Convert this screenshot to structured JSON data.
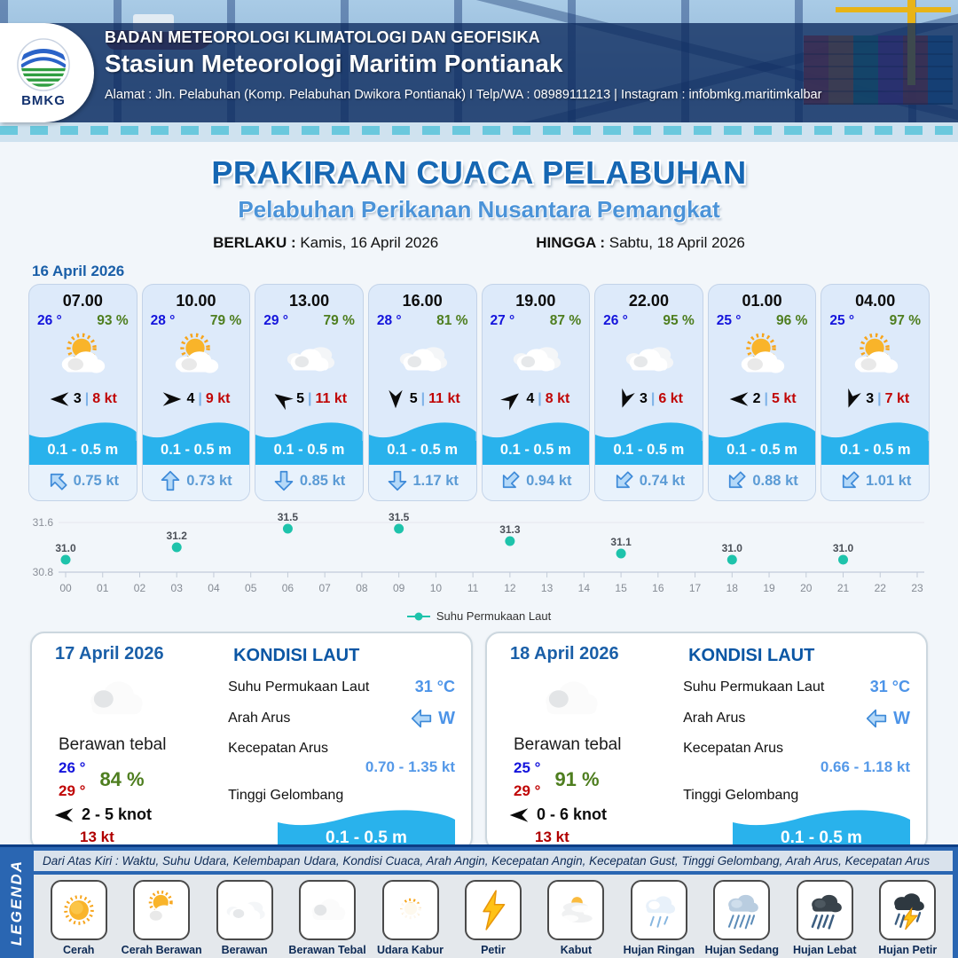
{
  "header": {
    "org": "BADAN METEOROLOGI KLIMATOLOGI DAN GEOFISIKA",
    "station": "Stasiun Meteorologi Maritim Pontianak",
    "address": "Alamat : Jln. Pelabuhan (Komp. Pelabuhan Dwikora Pontianak) I Telp/WA : 08989111213 | Instagram : infobmkg.maritimkalbar",
    "logo_text": "BMKG"
  },
  "title": {
    "main": "PRAKIRAAN CUACA PELABUHAN",
    "sub": "Pelabuhan Perikanan Nusantara Pemangkat",
    "berlaku_label": "BERLAKU :",
    "berlaku_value": "Kamis, 16 April 2026",
    "hingga_label": "HINGGA :",
    "hingga_value": "Sabtu, 18 April 2026"
  },
  "forecast_date": "16 April 2026",
  "hourly": [
    {
      "time": "07.00",
      "temp": "26 °",
      "humidity": "93 %",
      "icon": "sun-cloud",
      "wind_deg": 180,
      "wind": "3",
      "gust": "8 kt",
      "wave": "0.1 - 0.5 m",
      "current_deg": -45,
      "current": "0.75 kt"
    },
    {
      "time": "10.00",
      "temp": "28 °",
      "humidity": "79 %",
      "icon": "sun-cloud",
      "wind_deg": 0,
      "wind": "4",
      "gust": "9 kt",
      "wave": "0.1 - 0.5 m",
      "current_deg": 0,
      "current": "0.73 kt"
    },
    {
      "time": "13.00",
      "temp": "29 °",
      "humidity": "79 %",
      "icon": "clouds",
      "wind_deg": 215,
      "wind": "5",
      "gust": "11 kt",
      "wave": "0.1 - 0.5 m",
      "current_deg": 180,
      "current": "0.85 kt"
    },
    {
      "time": "16.00",
      "temp": "28 °",
      "humidity": "81 %",
      "icon": "clouds",
      "wind_deg": 90,
      "wind": "5",
      "gust": "11 kt",
      "wave": "0.1 - 0.5 m",
      "current_deg": 180,
      "current": "1.17 kt"
    },
    {
      "time": "19.00",
      "temp": "27 °",
      "humidity": "87 %",
      "icon": "clouds",
      "wind_deg": 320,
      "wind": "4",
      "gust": "8 kt",
      "wave": "0.1 - 0.5 m",
      "current_deg": 225,
      "current": "0.94 kt"
    },
    {
      "time": "22.00",
      "temp": "26 °",
      "humidity": "95 %",
      "icon": "clouds",
      "wind_deg": 110,
      "wind": "3",
      "gust": "6 kt",
      "wave": "0.1 - 0.5 m",
      "current_deg": 225,
      "current": "0.74 kt"
    },
    {
      "time": "01.00",
      "temp": "25 °",
      "humidity": "96 %",
      "icon": "sun-cloud",
      "wind_deg": 180,
      "wind": "2",
      "gust": "5 kt",
      "wave": "0.1 - 0.5 m",
      "current_deg": 225,
      "current": "0.88 kt"
    },
    {
      "time": "04.00",
      "temp": "25 °",
      "humidity": "97 %",
      "icon": "sun-cloud",
      "wind_deg": 110,
      "wind": "3",
      "gust": "7 kt",
      "wave": "0.1 - 0.5 m",
      "current_deg": 225,
      "current": "1.01 kt"
    }
  ],
  "chart_data": {
    "type": "scatter",
    "series": [
      {
        "name": "Suhu Permukaan Laut",
        "x": [
          0,
          3,
          6,
          9,
          12,
          15,
          18,
          21
        ],
        "values": [
          31.0,
          31.2,
          31.5,
          31.5,
          31.3,
          31.1,
          31.0,
          31.0
        ]
      }
    ],
    "x_ticks": [
      "00",
      "01",
      "02",
      "03",
      "04",
      "05",
      "06",
      "07",
      "08",
      "09",
      "10",
      "11",
      "12",
      "13",
      "14",
      "15",
      "16",
      "17",
      "18",
      "19",
      "20",
      "21",
      "22",
      "23"
    ],
    "ylim": [
      30.8,
      31.6
    ],
    "y_ticks": [
      30.8,
      31.6
    ],
    "point_color": "#1ec3ab",
    "grid": true,
    "legend_position": "bottom",
    "legend_label": "Suhu Permukaan Laut"
  },
  "daily": [
    {
      "date": "17 April 2026",
      "icon": "thick-cloud",
      "condition": "Berawan tebal",
      "temp_min": "26 °",
      "temp_max": "29 °",
      "humidity": "84 %",
      "wind_deg": 180,
      "wind_range": "2 - 5 knot",
      "gust": "13 kt",
      "sea": {
        "title": "KONDISI LAUT",
        "sst_label": "Suhu Permukaan Laut",
        "sst_value": "31 °C",
        "current_dir_label": "Arah Arus",
        "current_dir": "W",
        "current_dir_deg": 270,
        "current_speed_label": "Kecepatan Arus",
        "current_speed": "0.70 - 1.35 kt",
        "wave_label": "Tinggi Gelombang",
        "wave": "0.1 - 0.5 m"
      }
    },
    {
      "date": "18 April 2026",
      "icon": "thick-cloud",
      "condition": "Berawan tebal",
      "temp_min": "25 °",
      "temp_max": "29 °",
      "humidity": "91 %",
      "wind_deg": 180,
      "wind_range": "0 - 6 knot",
      "gust": "13 kt",
      "sea": {
        "title": "KONDISI LAUT",
        "sst_label": "Suhu Permukaan Laut",
        "sst_value": "31 °C",
        "current_dir_label": "Arah Arus",
        "current_dir": "W",
        "current_dir_deg": 270,
        "current_speed_label": "Kecepatan Arus",
        "current_speed": "0.66 - 1.18 kt",
        "wave_label": "Tinggi Gelombang",
        "wave": "0.1 - 0.5 m"
      }
    }
  ],
  "legend": {
    "title": "LEGENDA",
    "description": "Dari Atas Kiri : Waktu, Suhu Udara, Kelembapan Udara, Kondisi Cuaca, Arah Angin, Kecepatan Angin, Kecepatan Gust, Tinggi Gelombang, Arah Arus, Kecepatan Arus",
    "items": [
      {
        "label": "Cerah",
        "icon": "sun"
      },
      {
        "label": "Cerah Berawan",
        "icon": "sun-cloud"
      },
      {
        "label": "Berawan",
        "icon": "clouds"
      },
      {
        "label": "Berawan Tebal",
        "icon": "thick-cloud"
      },
      {
        "label": "Udara Kabur",
        "icon": "haze"
      },
      {
        "label": "Petir",
        "icon": "lightning"
      },
      {
        "label": "Kabut",
        "icon": "fog"
      },
      {
        "label": "Hujan Ringan",
        "icon": "rain-light"
      },
      {
        "label": "Hujan Sedang",
        "icon": "rain-mid"
      },
      {
        "label": "Hujan Lebat",
        "icon": "rain-heavy"
      },
      {
        "label": "Hujan Petir",
        "icon": "storm"
      }
    ]
  },
  "colors": {
    "accent_blue": "#1667b3",
    "subtitle_blue": "#4b93d8",
    "wave_blue": "#29b2ec",
    "temp_blue": "#1414dc",
    "humidity_green": "#4e7e1f",
    "gust_red": "#c00606",
    "current_blue": "#5b9bd5",
    "chart_point": "#1ec3ab"
  }
}
